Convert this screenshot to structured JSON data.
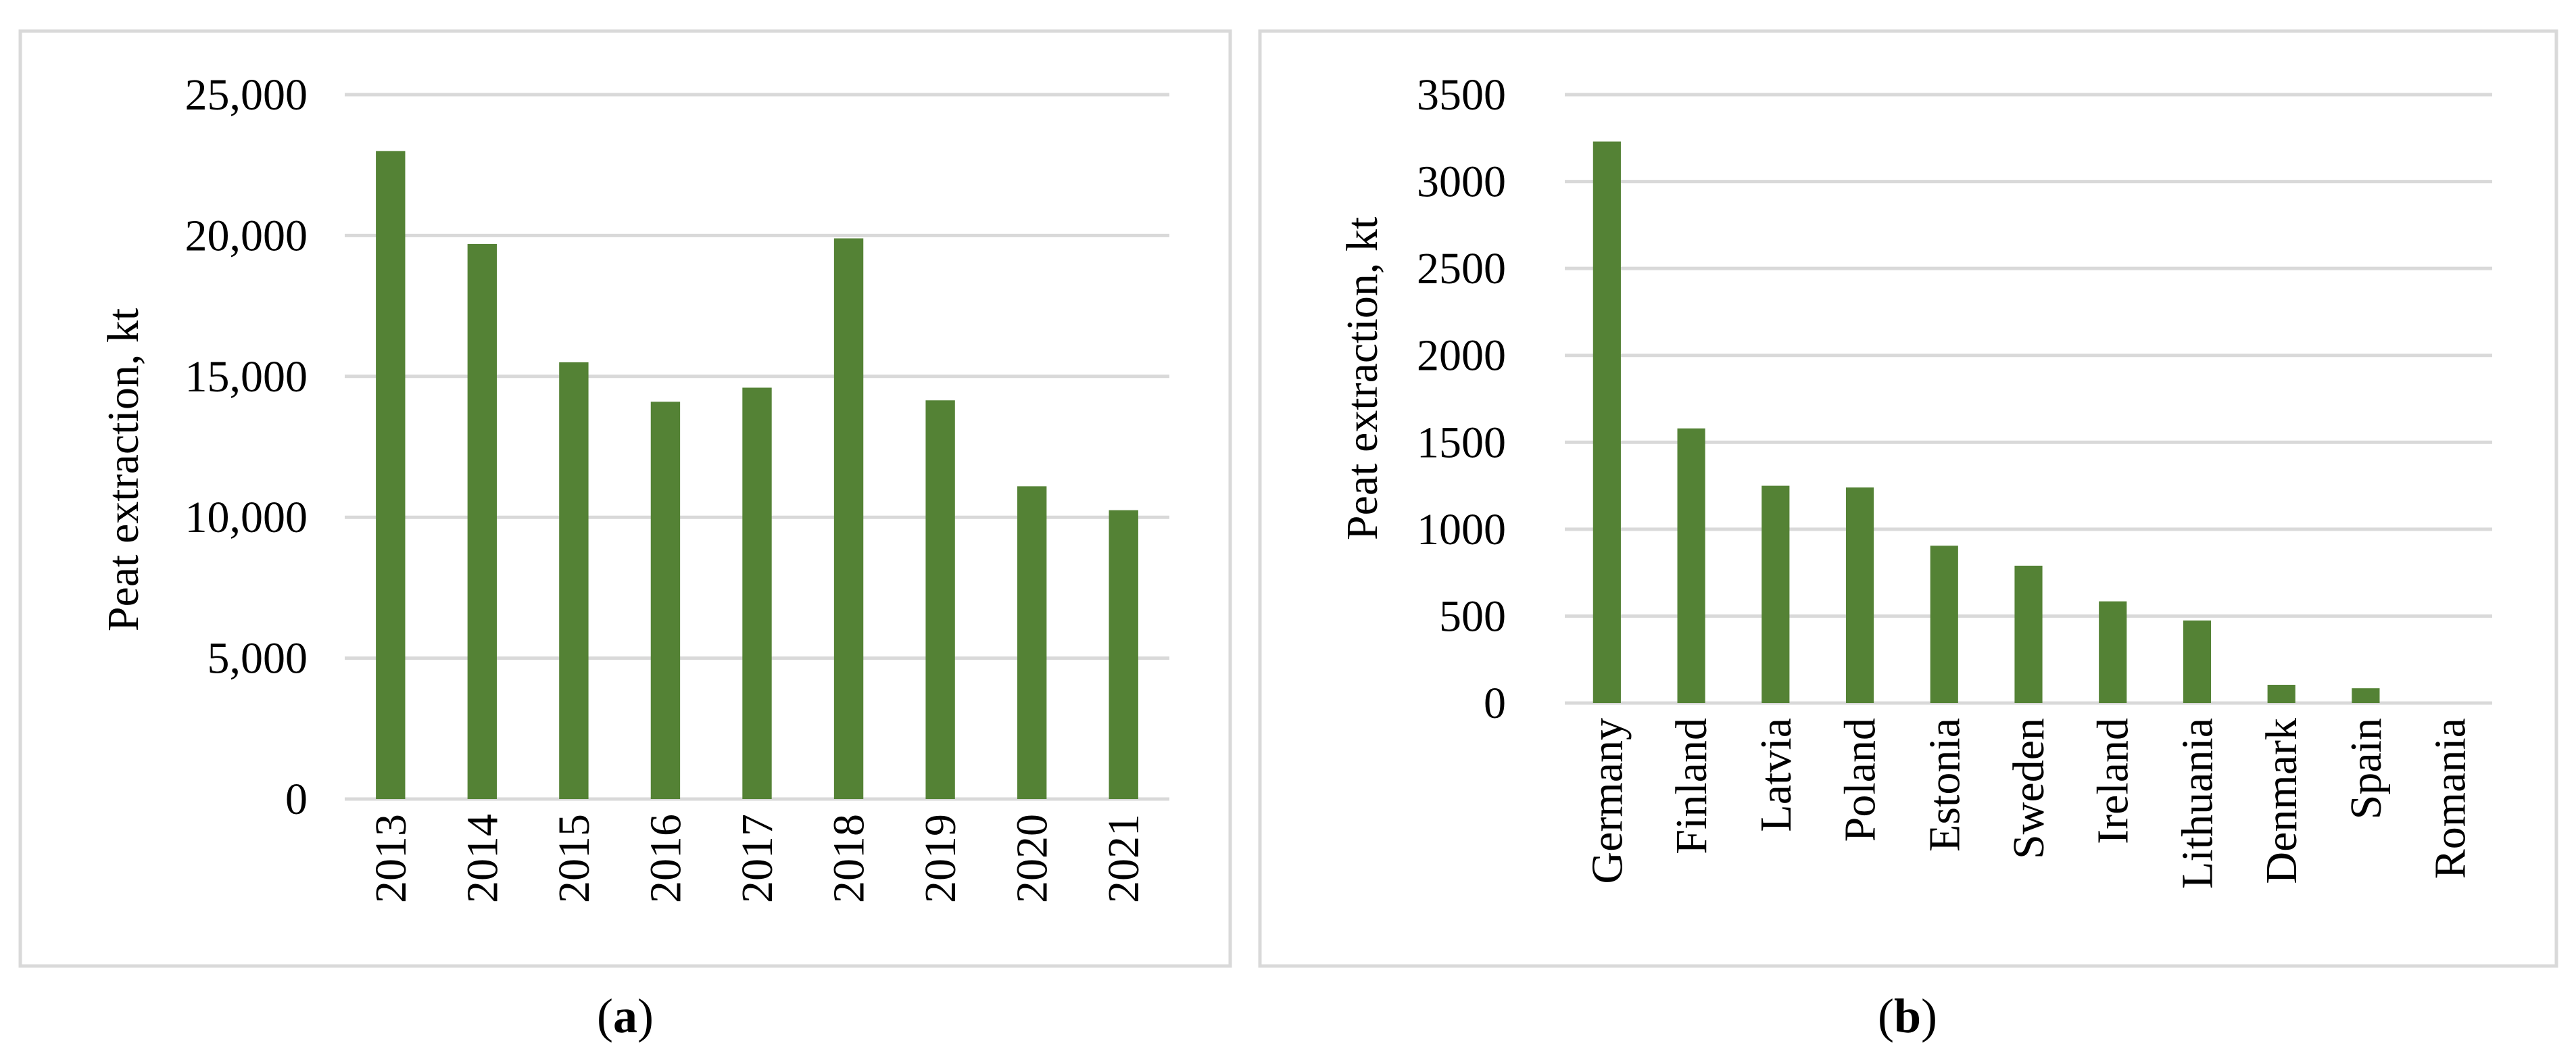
{
  "chart_data": [
    {
      "type": "bar",
      "title": "",
      "xlabel": "",
      "ylabel": "Peat extraction, kt",
      "ylim": [
        0,
        25000
      ],
      "yticks": [
        "0",
        "5,000",
        "10,000",
        "15,000",
        "20,000",
        "25,000"
      ],
      "grid": true,
      "categories": [
        "2013",
        "2014",
        "2015",
        "2016",
        "2017",
        "2018",
        "2019",
        "2020",
        "2021"
      ],
      "values": [
        23000,
        19700,
        15500,
        14100,
        14600,
        19900,
        14150,
        11100,
        10250
      ],
      "bar_color": "#548235",
      "caption": {
        "open": "(",
        "letter": "a",
        "close": ")"
      }
    },
    {
      "type": "bar",
      "title": "",
      "xlabel": "",
      "ylabel": "Peat extraction, kt",
      "ylim": [
        0,
        3500
      ],
      "yticks": [
        "0",
        "500",
        "1000",
        "1500",
        "2000",
        "2500",
        "3000",
        "3500"
      ],
      "grid": true,
      "categories": [
        "Germany",
        "Finland",
        "Latvia",
        "Poland",
        "Estonia",
        "Sweden",
        "Ireland",
        "Lithuania",
        "Denmark",
        "Spain",
        "Romania"
      ],
      "values": [
        3230,
        1580,
        1250,
        1240,
        905,
        790,
        585,
        475,
        105,
        85,
        0
      ],
      "bar_color": "#548235",
      "caption": {
        "open": "(",
        "letter": "b",
        "close": ")"
      }
    }
  ]
}
